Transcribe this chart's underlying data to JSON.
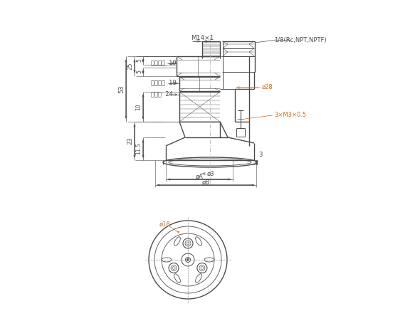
{
  "bg_color": "#ffffff",
  "line_color": "#4a4a4a",
  "dim_color": "#4a4a4a",
  "orange_color": "#c87020",
  "labels": {
    "M14x1": "M14×1",
    "thread_label": "1/8(Rc,NPT,NPTF)",
    "hex1": "六角対辺  19",
    "hex2": "六角対辺  19",
    "two_face": "二面幅  24",
    "dim_25": "25",
    "dim_5a": "5",
    "dim_5b": "5",
    "dim_53": "53",
    "dim_10": "10",
    "dim_23": "23",
    "dim_11_5": "11.5",
    "dim_28": "ø28",
    "dim_3x": "3×M3×0.5",
    "dim_3": "3",
    "dim_phi3": "ø3",
    "dim_phiA": "øA",
    "dim_phiB": "øB",
    "dim_phi18": "ø18"
  },
  "figsize": [
    5.83,
    4.37
  ],
  "dpi": 100
}
